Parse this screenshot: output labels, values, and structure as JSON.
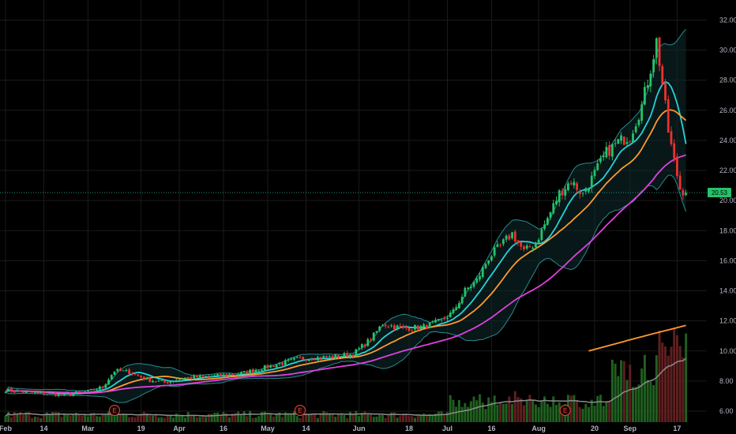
{
  "chart_data": {
    "type": "candlestick",
    "title": "",
    "y_axis": {
      "side": "right",
      "ticks": [
        "32.00",
        "30.00",
        "28.00",
        "26.00",
        "24.00",
        "22.00",
        "20.00",
        "18.00",
        "16.00",
        "14.00",
        "12.00",
        "10.00",
        "8.00",
        "6.00"
      ],
      "ylim": [
        5.0,
        32.5
      ]
    },
    "x_axis": {
      "ticks": [
        {
          "label": "Feb",
          "day": 0
        },
        {
          "label": "14",
          "day": 13
        },
        {
          "label": "Mar",
          "day": 28
        },
        {
          "label": "19",
          "day": 46
        },
        {
          "label": "Apr",
          "day": 59
        },
        {
          "label": "16",
          "day": 74
        },
        {
          "label": "May",
          "day": 89
        },
        {
          "label": "14",
          "day": 102
        },
        {
          "label": "Jun",
          "day": 120
        },
        {
          "label": "18",
          "day": 137
        },
        {
          "label": "Jul",
          "day": 150
        },
        {
          "label": "16",
          "day": 165
        },
        {
          "label": "Aug",
          "day": 181
        },
        {
          "label": "20",
          "day": 200
        },
        {
          "label": "Sep",
          "day": 212
        },
        {
          "label": "17",
          "day": 228
        }
      ]
    },
    "last_price": "20.53",
    "earnings_markers": [
      {
        "label": "E",
        "day": 37
      },
      {
        "label": "E",
        "day": 100
      },
      {
        "label": "E",
        "day": 190
      }
    ],
    "price_anchors": [
      [
        0,
        7.4
      ],
      [
        10,
        7.2
      ],
      [
        20,
        7.1
      ],
      [
        28,
        7.3
      ],
      [
        33,
        7.6
      ],
      [
        37,
        8.7
      ],
      [
        42,
        8.6
      ],
      [
        48,
        8.1
      ],
      [
        54,
        7.9
      ],
      [
        60,
        8.2
      ],
      [
        70,
        8.3
      ],
      [
        80,
        8.5
      ],
      [
        90,
        9.0
      ],
      [
        100,
        9.5
      ],
      [
        110,
        9.6
      ],
      [
        118,
        9.8
      ],
      [
        124,
        10.8
      ],
      [
        128,
        11.8
      ],
      [
        135,
        11.5
      ],
      [
        142,
        11.6
      ],
      [
        148,
        12.0
      ],
      [
        152,
        12.6
      ],
      [
        156,
        14.0
      ],
      [
        160,
        14.7
      ],
      [
        164,
        16.2
      ],
      [
        168,
        17.0
      ],
      [
        172,
        17.8
      ],
      [
        176,
        16.6
      ],
      [
        180,
        17.2
      ],
      [
        184,
        18.8
      ],
      [
        188,
        20.5
      ],
      [
        192,
        21.3
      ],
      [
        196,
        20.4
      ],
      [
        200,
        21.8
      ],
      [
        204,
        23.2
      ],
      [
        208,
        23.9
      ],
      [
        212,
        24.3
      ],
      [
        216,
        26.3
      ],
      [
        219,
        28.8
      ],
      [
        221,
        30.6
      ],
      [
        223,
        27.8
      ],
      [
        225,
        24.6
      ],
      [
        227,
        22.6
      ],
      [
        229,
        20.8
      ],
      [
        231,
        20.5
      ]
    ],
    "moving_averages": [
      {
        "color": "#26d3d9",
        "period": 10
      },
      {
        "color": "#ff9a2e",
        "period": 20
      },
      {
        "color": "#e040e0",
        "period": 50
      },
      {
        "color": "#ff9a2e",
        "period": 200,
        "anchors": [
          [
            198,
            10.0
          ],
          [
            215,
            10.9
          ],
          [
            231,
            11.7
          ]
        ]
      }
    ],
    "bollinger": {
      "color": "#2a8a8f"
    },
    "volume": {
      "up_color": "#1f5f1f",
      "down_color": "#5f1f1f",
      "ma_color": "#8c8c8c"
    },
    "colors": {
      "up": "#26a69a",
      "up_fill": "#26c26a",
      "down": "#ef5350",
      "down_fill": "#ef3030",
      "grid": "#1b1b1b",
      "price_line": "#26a69a"
    }
  }
}
